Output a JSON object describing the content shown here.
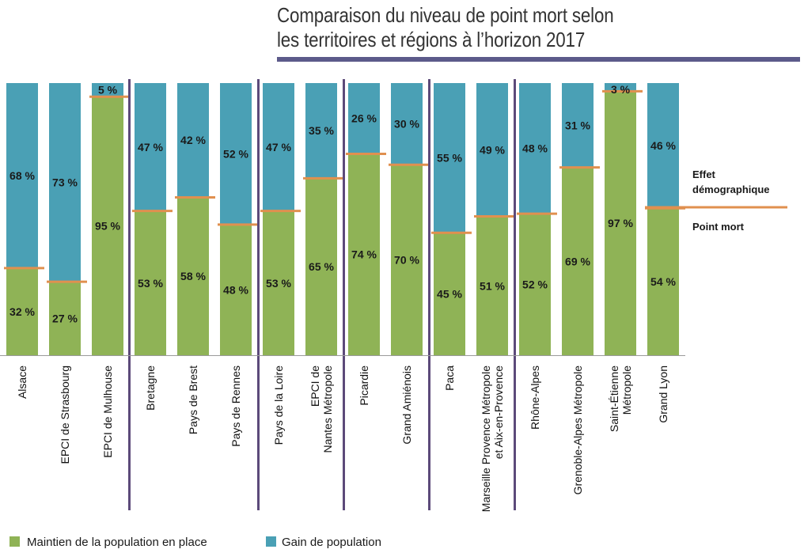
{
  "title": {
    "line1": "Comparaison du niveau de point mort selon",
    "line2": "les territoires et régions à l’horizon 2017"
  },
  "colors": {
    "maintien": "#8fb356",
    "gain": "#4aa0b5",
    "point_mort_line": "#e0904f",
    "separator": "#5c4a7a",
    "title_rule": "#5c5a8a"
  },
  "annotations": {
    "effet_line1": "Effet",
    "effet_line2": "démographique",
    "point_mort": "Point mort"
  },
  "chart_data": {
    "type": "bar",
    "stacked": true,
    "categories": [
      [
        "Alsace"
      ],
      [
        "EPCI de Strasbourg"
      ],
      [
        "EPCI de Mulhouse"
      ],
      [
        "Bretagne"
      ],
      [
        "Pays de Brest"
      ],
      [
        "Pays de Rennes"
      ],
      [
        "Pays de la Loire"
      ],
      [
        "EPCI de",
        "Nantes Métropole"
      ],
      [
        "Picardie"
      ],
      [
        "Grand Amiénois"
      ],
      [
        "Paca"
      ],
      [
        "Marseille Provence Métropole",
        "et Aix-en-Provence"
      ],
      [
        "Rhône-Alpes"
      ],
      [
        "Grenoble-Alpes Métropole"
      ],
      [
        "Saint-Étienne",
        "Métropole"
      ],
      [
        "Grand Lyon"
      ]
    ],
    "groups": [
      [
        0,
        1,
        2
      ],
      [
        3,
        4,
        5
      ],
      [
        6,
        7
      ],
      [
        8,
        9
      ],
      [
        10,
        11
      ],
      [
        12,
        13,
        14,
        15
      ]
    ],
    "series": [
      {
        "name": "Maintien de la population en place",
        "values": [
          32,
          27,
          95,
          53,
          58,
          48,
          53,
          65,
          74,
          70,
          45,
          51,
          52,
          69,
          97,
          54
        ]
      },
      {
        "name": "Gain de population",
        "values": [
          68,
          73,
          5,
          47,
          42,
          52,
          47,
          35,
          26,
          30,
          55,
          49,
          48,
          31,
          3,
          46
        ]
      }
    ],
    "unit_suffix": " %",
    "ylim": [
      0,
      100
    ],
    "legend": "bottom-left",
    "grid": false
  }
}
